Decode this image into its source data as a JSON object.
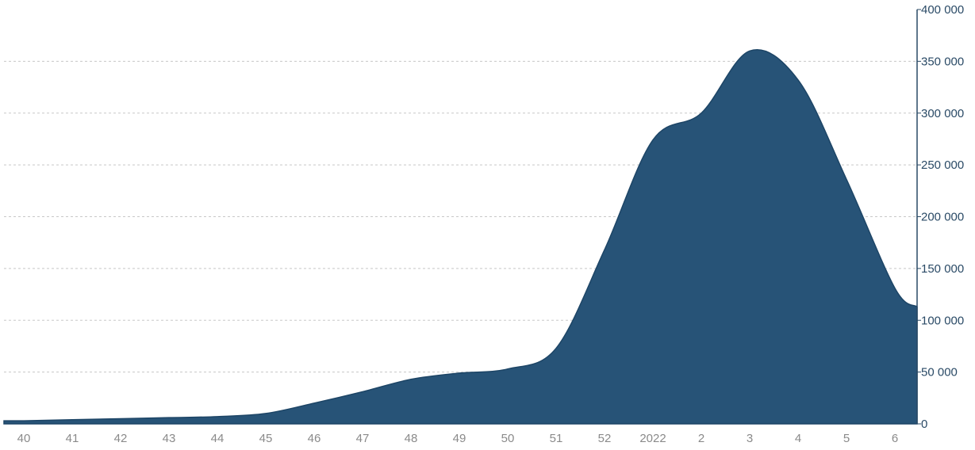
{
  "chart_data": {
    "type": "area",
    "x": [
      "40",
      "41",
      "42",
      "43",
      "44",
      "45",
      "46",
      "47",
      "48",
      "49",
      "50",
      "51",
      "52",
      "2022",
      "2",
      "3",
      "4",
      "5",
      "6"
    ],
    "values": [
      3000,
      4000,
      5000,
      6000,
      7000,
      10000,
      20000,
      31000,
      43000,
      49000,
      53000,
      73000,
      168000,
      274000,
      300000,
      360000,
      332000,
      236000,
      131000
    ],
    "trailing_value": 113000,
    "ylim": [
      0,
      400000
    ],
    "yticks": [
      0,
      50000,
      100000,
      150000,
      200000,
      250000,
      300000,
      350000,
      400000
    ],
    "ytick_labels": [
      "0",
      "50 000",
      "100 000",
      "150 000",
      "200 000",
      "250 000",
      "300 000",
      "350 000",
      "400 000"
    ],
    "grid": true,
    "y_axis_side": "right",
    "color": "#275377",
    "title": "",
    "xlabel": "",
    "ylabel": ""
  }
}
